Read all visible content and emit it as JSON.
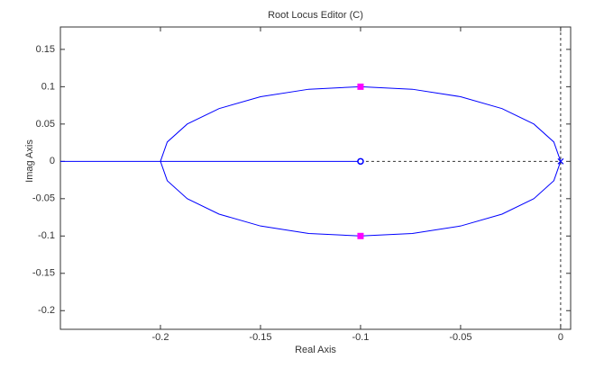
{
  "chart_data": {
    "type": "line",
    "title": "Root Locus Editor (C)",
    "x_label": "Real Axis",
    "y_label": "Imag Axis",
    "xlim": [
      -0.25,
      0.005
    ],
    "ylim": [
      -0.225,
      0.18
    ],
    "xticks": [
      -0.2,
      -0.15,
      -0.1,
      -0.05,
      0
    ],
    "yticks": [
      -0.2,
      -0.15,
      -0.1,
      -0.05,
      0,
      0.05,
      0.1,
      0.15
    ],
    "series": [
      {
        "color": "#0000ff",
        "style": "solid",
        "x": [
          0,
          -0.0034,
          -0.0134,
          -0.0293,
          -0.05,
          -0.0741,
          -0.1,
          -0.1259,
          -0.15,
          -0.1707,
          -0.1866,
          -0.1966,
          -0.2
        ],
        "values": [
          0,
          0.0259,
          0.05,
          0.0707,
          0.0866,
          0.0966,
          0.1,
          0.0966,
          0.0866,
          0.0707,
          0.05,
          0.0259,
          0
        ]
      },
      {
        "color": "#0000ff",
        "style": "solid",
        "x": [
          0,
          -0.0034,
          -0.0134,
          -0.0293,
          -0.05,
          -0.0741,
          -0.1,
          -0.1259,
          -0.15,
          -0.1707,
          -0.1866,
          -0.1966,
          -0.2
        ],
        "values": [
          0,
          -0.0259,
          -0.05,
          -0.0707,
          -0.0866,
          -0.0966,
          -0.1,
          -0.0966,
          -0.0866,
          -0.0707,
          -0.05,
          -0.0259,
          0
        ]
      },
      {
        "color": "#0000ff",
        "style": "solid",
        "x": [
          -0.25,
          -0.1
        ],
        "values": [
          0,
          0
        ]
      },
      {
        "color": "#333333",
        "style": "dashed",
        "x": [
          -0.1,
          0
        ],
        "values": [
          0,
          0
        ]
      },
      {
        "color": "#0000ff",
        "marker": "zero",
        "x": [
          -0.1
        ],
        "values": [
          0
        ]
      },
      {
        "color": "#0000ff",
        "marker": "pole",
        "x": [
          0
        ],
        "values": [
          0
        ]
      },
      {
        "color": "#ff00ff",
        "marker": "square",
        "x": [
          -0.1,
          -0.1
        ],
        "values": [
          0.1,
          -0.1
        ]
      }
    ]
  }
}
